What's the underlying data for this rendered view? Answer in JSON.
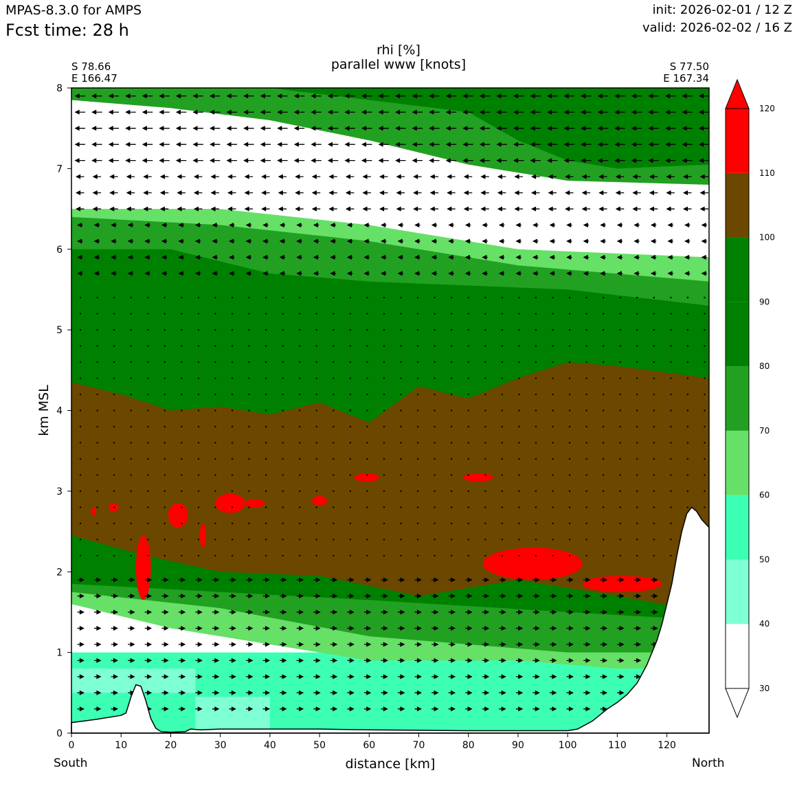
{
  "header": {
    "model": "MPAS-8.3.0 for AMPS",
    "fcst_time": "Fcst time:   28 h",
    "init": "init: 2026-02-01 / 12 Z",
    "valid": "valid: 2026-02-02 / 16 Z"
  },
  "endpoints": {
    "left_lat": "S 78.66",
    "left_lon": "E 166.47",
    "right_lat": "S 77.50",
    "right_lon": "E 167.34",
    "left_dir": "South",
    "right_dir": "North"
  },
  "chart_data": {
    "type": "cross-section contour",
    "title": "rhi [%]",
    "subtitle": "parallel www [knots]",
    "xlabel": "distance [km]",
    "ylabel": "km MSL",
    "xlim": [
      0,
      128.5
    ],
    "ylim": [
      0,
      8
    ],
    "xticks": [
      0,
      10,
      20,
      30,
      40,
      50,
      60,
      70,
      80,
      90,
      100,
      110,
      120
    ],
    "yticks": [
      0,
      1,
      2,
      3,
      4,
      5,
      6,
      7,
      8
    ],
    "colorbar": {
      "levels": [
        30,
        40,
        50,
        60,
        70,
        80,
        90,
        100,
        110,
        120
      ],
      "colors": [
        "#ffffff",
        "#7fffd4",
        "#3cffb4",
        "#66e066",
        "#22a022",
        "#008000",
        "#008000",
        "#6b4700",
        "#ff0000"
      ],
      "extend": "both"
    },
    "layers": [
      {
        "range": "60-70",
        "color": "#66e066",
        "top": [
          [
            0,
            6.5
          ],
          [
            30,
            6.5
          ],
          [
            60,
            6.3
          ],
          [
            90,
            6.0
          ],
          [
            128.5,
            5.9
          ]
        ],
        "bottom": [
          [
            0,
            1.6
          ],
          [
            20,
            1.3
          ],
          [
            40,
            1.1
          ],
          [
            60,
            0.9
          ],
          [
            90,
            0.9
          ],
          [
            110,
            0.8
          ],
          [
            128.5,
            0.8
          ]
        ]
      },
      {
        "range": "70-80",
        "color": "#22a022",
        "top": [
          [
            0,
            6.4
          ],
          [
            30,
            6.3
          ],
          [
            60,
            6.1
          ],
          [
            90,
            5.8
          ],
          [
            128.5,
            5.6
          ]
        ],
        "bottom": [
          [
            0,
            1.75
          ],
          [
            30,
            1.55
          ],
          [
            60,
            1.2
          ],
          [
            100,
            1.0
          ],
          [
            128.5,
            1.0
          ]
        ]
      },
      {
        "range": "80-100",
        "color": "#008000",
        "top": [
          [
            0,
            6.0
          ],
          [
            20,
            6.0
          ],
          [
            40,
            5.7
          ],
          [
            60,
            5.6
          ],
          [
            100,
            5.5
          ],
          [
            128.5,
            5.3
          ]
        ],
        "bottom": [
          [
            0,
            1.85
          ],
          [
            30,
            1.75
          ],
          [
            60,
            1.65
          ],
          [
            100,
            1.5
          ],
          [
            128.5,
            1.4
          ]
        ]
      },
      {
        "range": "100-110",
        "color": "#6b4700",
        "top": [
          [
            0,
            4.35
          ],
          [
            10,
            4.2
          ],
          [
            20,
            4.0
          ],
          [
            30,
            4.05
          ],
          [
            40,
            3.95
          ],
          [
            50,
            4.1
          ],
          [
            60,
            3.85
          ],
          [
            70,
            4.3
          ],
          [
            80,
            4.15
          ],
          [
            90,
            4.4
          ],
          [
            100,
            4.6
          ],
          [
            110,
            4.55
          ],
          [
            128.5,
            4.4
          ]
        ],
        "bottom": [
          [
            0,
            2.45
          ],
          [
            15,
            2.2
          ],
          [
            30,
            2.0
          ],
          [
            50,
            1.95
          ],
          [
            70,
            1.7
          ],
          [
            90,
            1.9
          ],
          [
            110,
            1.7
          ],
          [
            128.5,
            1.5
          ]
        ]
      }
    ],
    "upper_layers": [
      {
        "range": "70-80",
        "color": "#22a022",
        "top": [
          [
            0,
            8.0
          ],
          [
            128.5,
            8.0
          ]
        ],
        "bottom": [
          [
            0,
            7.85
          ],
          [
            20,
            7.75
          ],
          [
            40,
            7.6
          ],
          [
            60,
            7.35
          ],
          [
            80,
            7.05
          ],
          [
            100,
            6.85
          ],
          [
            128.5,
            6.8
          ]
        ]
      },
      {
        "range": "80-100",
        "color": "#008000",
        "top": [
          [
            40,
            8.0
          ],
          [
            128.5,
            8.0
          ]
        ],
        "bottom": [
          [
            80,
            7.7
          ],
          [
            90,
            7.35
          ],
          [
            100,
            7.1
          ],
          [
            110,
            7.0
          ],
          [
            128.5,
            7.05
          ]
        ]
      }
    ],
    "red_regions": [
      {
        "x": 4.5,
        "y": 2.75,
        "rx": 0.5,
        "ry": 0.05
      },
      {
        "x": 8.5,
        "y": 2.8,
        "rx": 1.0,
        "ry": 0.05
      },
      {
        "x": 14.5,
        "y": 2.05,
        "rx": 1.5,
        "ry": 0.4
      },
      {
        "x": 21.5,
        "y": 2.7,
        "rx": 2.0,
        "ry": 0.15
      },
      {
        "x": 26.5,
        "y": 2.45,
        "rx": 0.6,
        "ry": 0.15
      },
      {
        "x": 32.0,
        "y": 2.85,
        "rx": 3.0,
        "ry": 0.12
      },
      {
        "x": 37.0,
        "y": 2.85,
        "rx": 2.0,
        "ry": 0.05
      },
      {
        "x": 50.0,
        "y": 2.88,
        "rx": 1.5,
        "ry": 0.06
      },
      {
        "x": 59.5,
        "y": 3.17,
        "rx": 2.5,
        "ry": 0.05
      },
      {
        "x": 82.0,
        "y": 3.17,
        "rx": 3.0,
        "ry": 0.05
      },
      {
        "x": 93.0,
        "y": 2.1,
        "rx": 10.0,
        "ry": 0.2
      },
      {
        "x": 111.0,
        "y": 1.85,
        "rx": 8.0,
        "ry": 0.1
      }
    ],
    "terrain": [
      [
        0,
        0.13
      ],
      [
        5,
        0.17
      ],
      [
        10,
        0.22
      ],
      [
        11,
        0.25
      ],
      [
        12,
        0.45
      ],
      [
        13,
        0.6
      ],
      [
        14,
        0.58
      ],
      [
        15,
        0.4
      ],
      [
        16,
        0.18
      ],
      [
        17,
        0.06
      ],
      [
        18,
        0.02
      ],
      [
        20,
        0.01
      ],
      [
        23,
        0.02
      ],
      [
        24,
        0.05
      ],
      [
        26,
        0.04
      ],
      [
        30,
        0.05
      ],
      [
        40,
        0.05
      ],
      [
        50,
        0.05
      ],
      [
        60,
        0.04
      ],
      [
        80,
        0.03
      ],
      [
        100,
        0.03
      ],
      [
        102,
        0.05
      ],
      [
        105,
        0.15
      ],
      [
        108,
        0.3
      ],
      [
        110,
        0.38
      ],
      [
        112,
        0.48
      ],
      [
        114,
        0.62
      ],
      [
        116,
        0.85
      ],
      [
        118,
        1.15
      ],
      [
        119,
        1.35
      ],
      [
        120,
        1.6
      ],
      [
        121,
        1.85
      ],
      [
        122,
        2.2
      ],
      [
        123,
        2.5
      ],
      [
        124,
        2.72
      ],
      [
        125,
        2.8
      ],
      [
        126,
        2.75
      ],
      [
        127,
        2.65
      ],
      [
        128.5,
        2.55
      ]
    ]
  }
}
